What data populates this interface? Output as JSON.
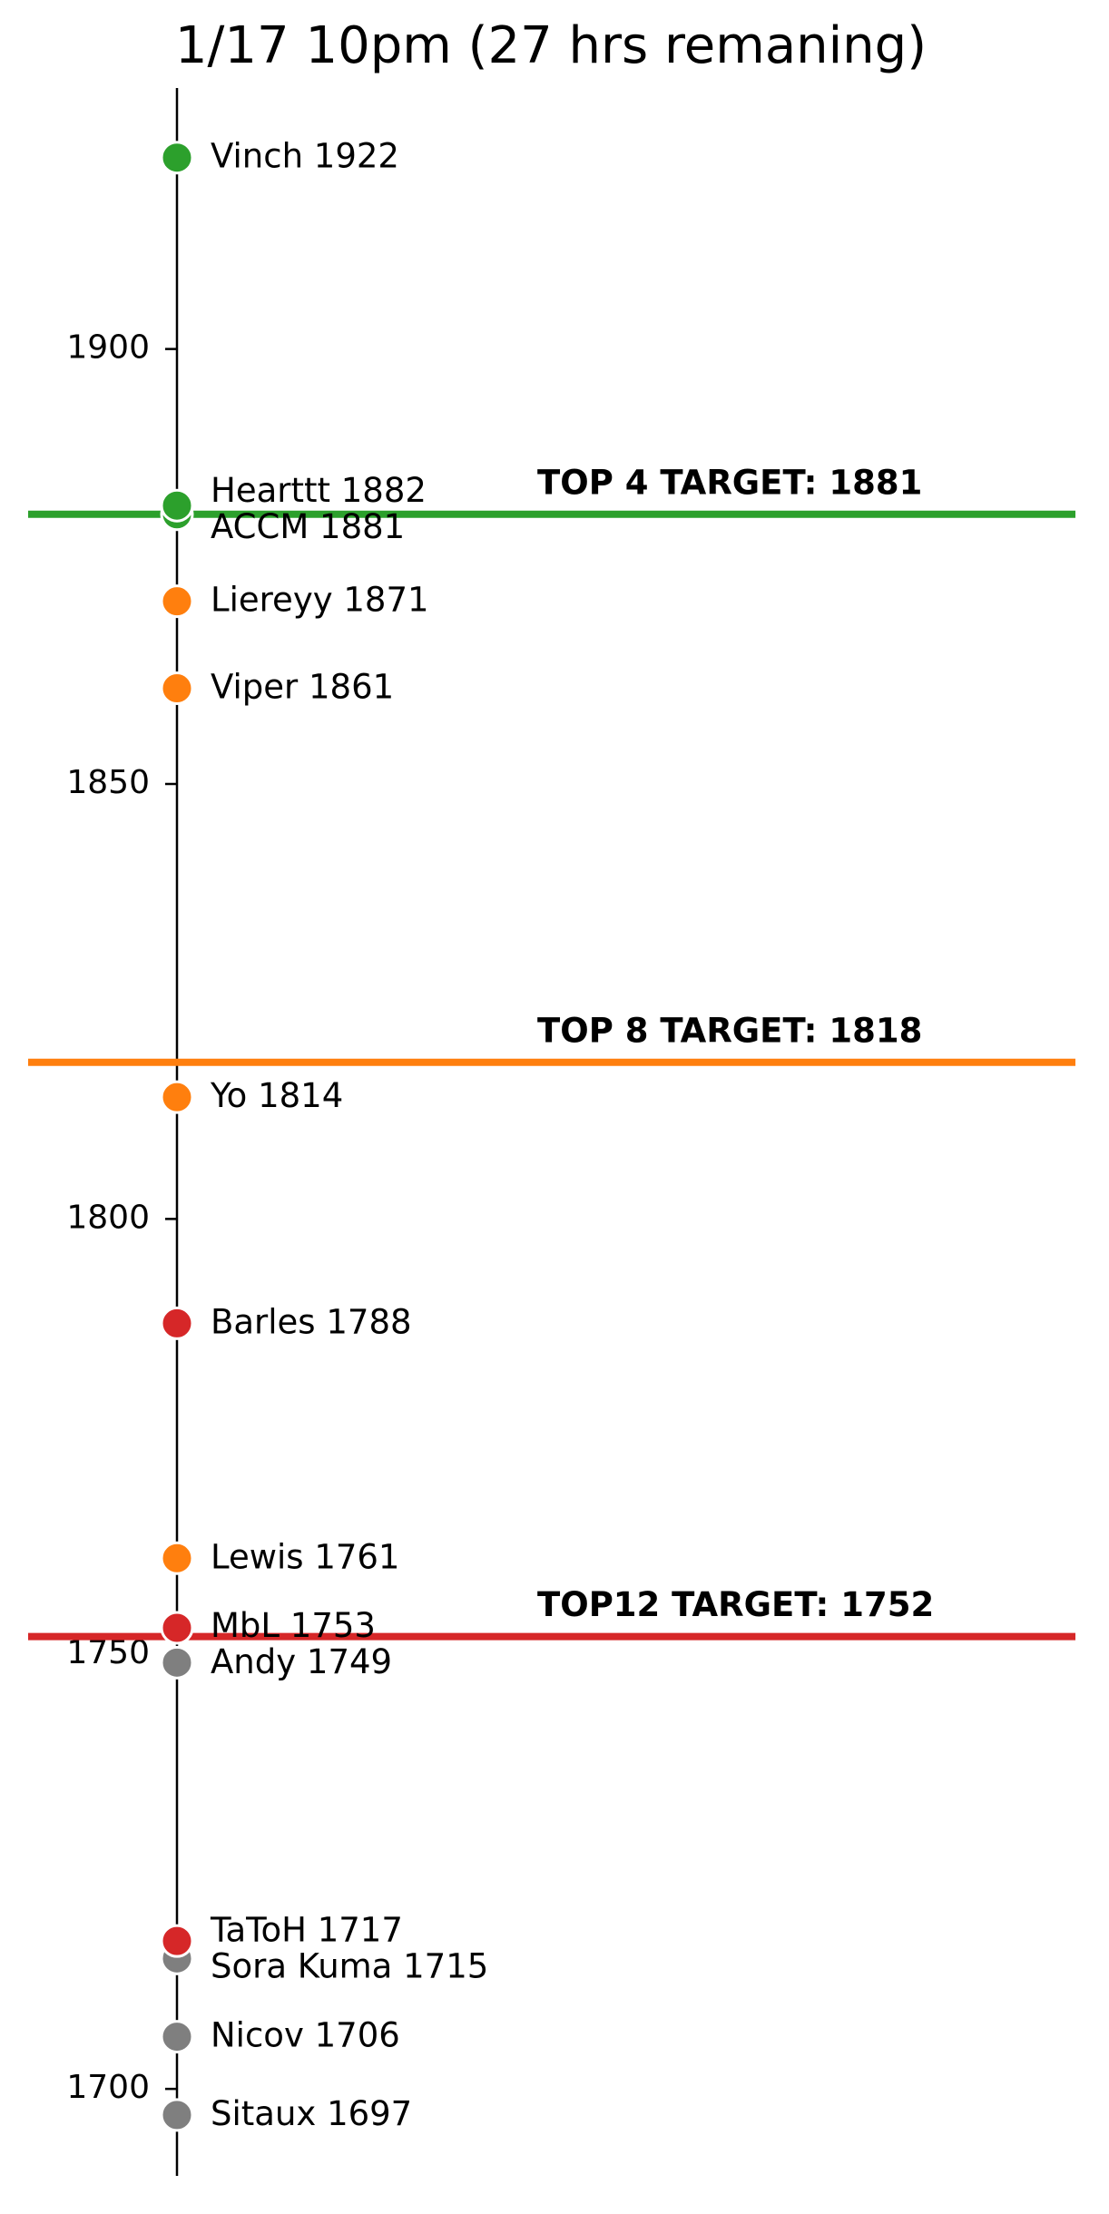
{
  "chart_data": {
    "type": "scatter",
    "title": "1/17 10pm (27 hrs remaning)",
    "categories": [
      "Vinch",
      "Hearttt",
      "ACCM",
      "Liereyy",
      "Viper",
      "Yo",
      "Barles",
      "Lewis",
      "MbL",
      "Andy",
      "TaToH",
      "Sora Kuma",
      "Nicov",
      "Sitaux"
    ],
    "values": [
      1922,
      1882,
      1881,
      1871,
      1861,
      1814,
      1788,
      1761,
      1753,
      1749,
      1717,
      1715,
      1706,
      1697
    ],
    "colors": [
      "#2ca02c",
      "#2ca02c",
      "#2ca02c",
      "#ff7f0e",
      "#ff7f0e",
      "#ff7f0e",
      "#d62728",
      "#ff7f0e",
      "#d62728",
      "#7f7f7f",
      "#d62728",
      "#7f7f7f",
      "#7f7f7f",
      "#7f7f7f"
    ],
    "targets": [
      {
        "label": "TOP 4 TARGET: 1881",
        "value": 1881,
        "color": "#2ca02c"
      },
      {
        "label": "TOP 8 TARGET: 1818",
        "value": 1818,
        "color": "#ff7f0e"
      },
      {
        "label": "TOP12 TARGET: 1752",
        "value": 1752,
        "color": "#d62728"
      }
    ],
    "ylim": [
      1690,
      1930
    ],
    "yticks": [
      1700,
      1750,
      1800,
      1850,
      1900
    ]
  }
}
